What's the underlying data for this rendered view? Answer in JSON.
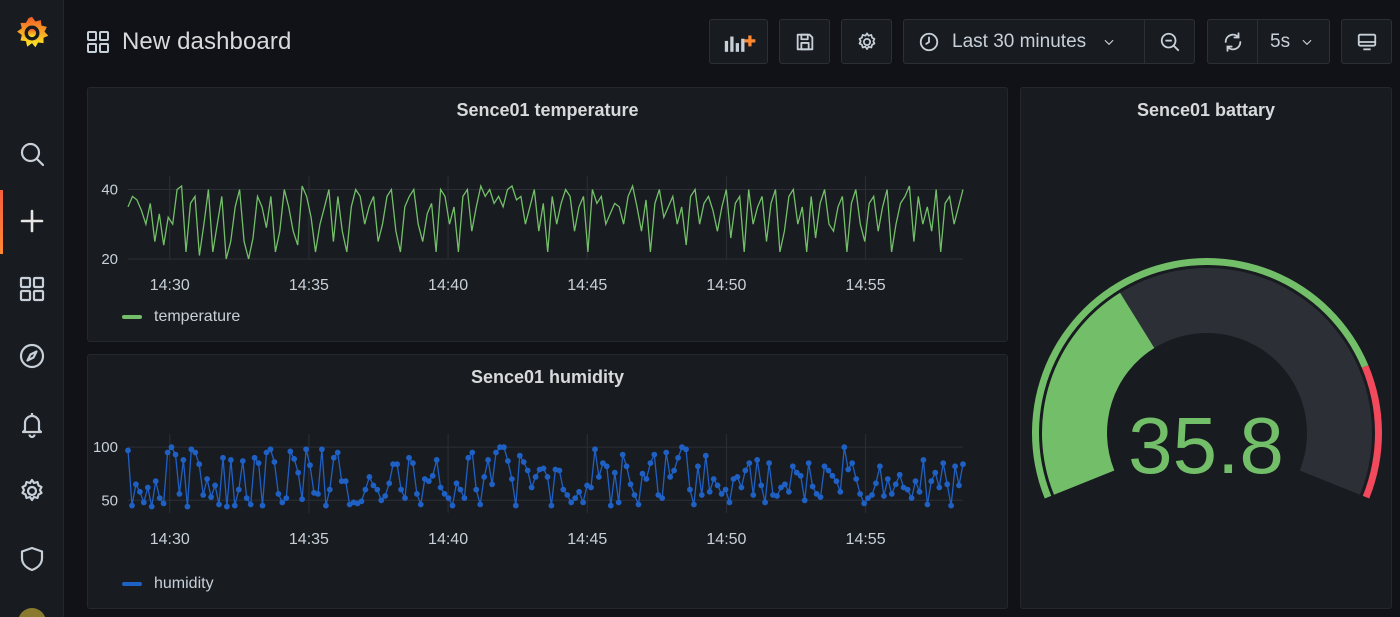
{
  "header": {
    "title": "New dashboard",
    "time_range": "Last 30 minutes",
    "refresh_interval": "5s"
  },
  "sidebar": {
    "items": [
      "grafana-logo",
      "search",
      "create",
      "dashboards",
      "explore",
      "alerting",
      "configuration",
      "server-admin"
    ],
    "active": "create"
  },
  "panels": {
    "temperature": {
      "title": "Sence01 temperature",
      "legend": "temperature",
      "color": "#73bf69"
    },
    "humidity": {
      "title": "Sence01 humidity",
      "legend": "humidity",
      "color": "#1f60c4"
    },
    "battery": {
      "title": "Sence01 battary",
      "value": "35.8",
      "value_color": "#73bf69",
      "threshold_ok_color": "#73bf69",
      "threshold_crit_color": "#f2495c"
    }
  },
  "chart_data": [
    {
      "type": "line",
      "name": "temperature",
      "x_ticks": [
        "14:30",
        "14:35",
        "14:40",
        "14:45",
        "14:50",
        "14:55"
      ],
      "x_range_minutes": [
        28.5,
        58.5
      ],
      "y_ticks": [
        20,
        40
      ],
      "ylim": [
        20,
        41
      ],
      "series": [
        {
          "name": "temperature",
          "values": [
            35,
            38,
            37,
            34,
            30,
            36,
            25,
            33,
            24,
            32,
            30,
            40,
            41,
            22,
            36,
            38,
            21,
            30,
            40,
            22,
            30,
            38,
            20,
            25,
            35,
            40,
            25,
            20,
            26,
            38,
            35,
            29,
            38,
            22,
            28,
            40,
            35,
            28,
            24,
            41,
            38,
            32,
            22,
            30,
            35,
            40,
            25,
            38,
            28,
            22,
            35,
            40,
            38,
            30,
            35,
            38,
            25,
            30,
            38,
            40,
            28,
            22,
            35,
            38,
            40,
            30,
            25,
            33,
            36,
            22,
            40,
            38,
            30,
            35,
            22,
            38,
            40,
            28,
            35,
            41,
            38,
            40,
            36,
            38,
            35,
            40,
            41,
            37,
            38,
            30,
            35,
            40,
            28,
            36,
            22,
            38,
            30,
            36,
            40,
            38,
            28,
            35,
            38,
            22,
            40,
            36,
            38,
            30,
            33,
            36,
            35,
            30,
            38,
            41,
            35,
            28,
            37,
            22,
            36,
            40,
            32,
            35,
            38,
            30,
            35,
            24,
            38,
            40,
            30,
            36,
            38,
            34,
            28,
            35,
            40,
            26,
            36,
            38,
            22,
            40,
            30,
            35,
            38,
            25,
            36,
            40,
            22,
            28,
            38,
            40,
            30,
            35,
            22,
            38,
            26,
            36,
            40,
            30,
            28,
            35,
            38,
            22,
            36,
            40,
            30,
            25,
            36,
            38,
            28,
            35,
            40,
            22,
            30,
            36,
            38,
            41,
            25,
            38,
            30,
            35,
            28,
            40,
            22,
            36,
            38,
            30,
            35,
            40
          ],
          "color": "#73bf69"
        }
      ]
    },
    {
      "type": "line",
      "name": "humidity",
      "x_ticks": [
        "14:30",
        "14:35",
        "14:40",
        "14:45",
        "14:50",
        "14:55"
      ],
      "x_range_minutes": [
        28.5,
        58.5
      ],
      "y_ticks": [
        50,
        100
      ],
      "ylim": [
        38,
        103
      ],
      "series": [
        {
          "name": "humidity",
          "values": [
            97,
            45,
            65,
            58,
            48,
            62,
            44,
            68,
            52,
            47,
            95,
            100,
            93,
            56,
            88,
            44,
            98,
            95,
            84,
            55,
            70,
            53,
            64,
            46,
            90,
            44,
            88,
            45,
            60,
            87,
            52,
            46,
            90,
            85,
            45,
            95,
            98,
            86,
            56,
            48,
            52,
            96,
            89,
            76,
            51,
            98,
            83,
            57,
            56,
            98,
            45,
            60,
            90,
            95,
            68,
            68,
            46,
            48,
            47,
            49,
            60,
            72,
            64,
            60,
            50,
            54,
            66,
            84,
            84,
            60,
            52,
            90,
            85,
            56,
            46,
            70,
            68,
            73,
            88,
            62,
            56,
            52,
            45,
            66,
            60,
            52,
            90,
            95,
            60,
            46,
            72,
            88,
            65,
            95,
            100,
            100,
            87,
            70,
            45,
            92,
            86,
            78,
            62,
            72,
            79,
            80,
            72,
            45,
            79,
            78,
            60,
            55,
            48,
            52,
            58,
            48,
            64,
            62,
            98,
            72,
            85,
            82,
            45,
            76,
            48,
            93,
            82,
            65,
            55,
            46,
            75,
            70,
            85,
            93,
            55,
            52,
            95,
            72,
            78,
            90,
            100,
            98,
            60,
            46,
            82,
            55,
            92,
            58,
            70,
            64,
            56,
            60,
            48,
            70,
            72,
            62,
            78,
            85,
            55,
            88,
            64,
            48,
            85,
            55,
            54,
            62,
            65,
            58,
            82,
            76,
            73,
            50,
            85,
            63,
            56,
            53,
            82,
            78,
            73,
            68,
            58,
            100,
            79,
            85,
            70,
            56,
            47,
            52,
            55,
            66,
            82,
            54,
            70,
            56,
            65,
            74,
            62,
            60,
            52,
            68,
            58,
            88,
            46,
            68,
            76,
            62,
            85,
            65,
            45,
            82,
            64,
            84
          ],
          "color": "#1f60c4"
        }
      ]
    },
    {
      "type": "gauge",
      "name": "battery",
      "value": 35.8,
      "min": 0,
      "max": 100,
      "thresholds": [
        {
          "value": 0,
          "color": "#73bf69"
        },
        {
          "value": 80,
          "color": "#f2495c"
        }
      ]
    }
  ]
}
